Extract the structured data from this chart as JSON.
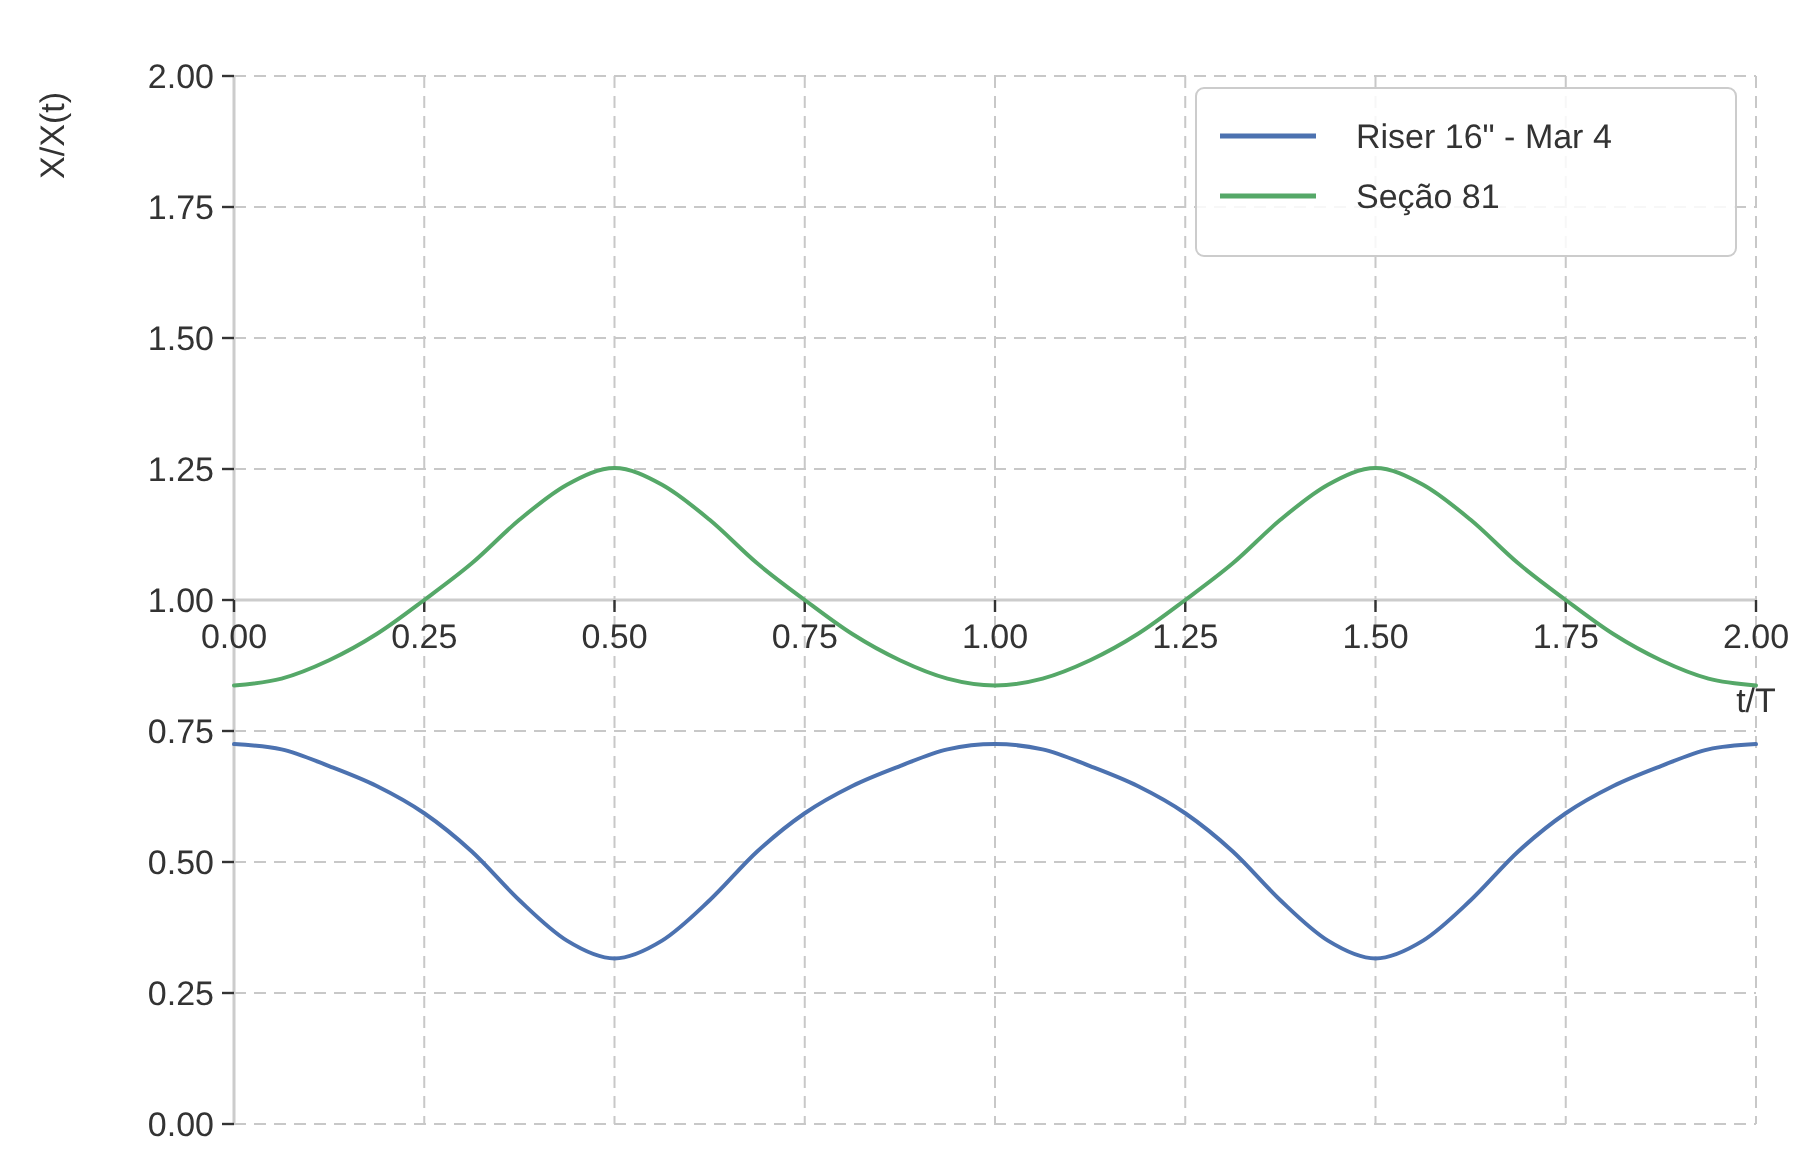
{
  "chart_data": {
    "type": "line",
    "xlabel": "t/T",
    "ylabel": "X/X(t)",
    "x": [
      0,
      0.0625,
      0.125,
      0.1875,
      0.25,
      0.3125,
      0.375,
      0.4375,
      0.5,
      0.5625,
      0.625,
      0.6875,
      0.75,
      0.8125,
      0.875,
      0.9375,
      1,
      1.0625,
      1.125,
      1.1875,
      1.25,
      1.3125,
      1.375,
      1.4375,
      1.5,
      1.5625,
      1.625,
      1.6875,
      1.75,
      1.8125,
      1.875,
      1.9375,
      2
    ],
    "series": [
      {
        "name": "Riser 16\" - Mar 4",
        "color": "#4c72b0",
        "values": [
          0.725,
          0.715,
          0.683,
          0.645,
          0.593,
          0.52,
          0.427,
          0.35,
          0.316,
          0.35,
          0.427,
          0.52,
          0.593,
          0.645,
          0.683,
          0.715,
          0.725,
          0.715,
          0.683,
          0.645,
          0.593,
          0.52,
          0.427,
          0.35,
          0.316,
          0.35,
          0.427,
          0.52,
          0.593,
          0.645,
          0.683,
          0.715,
          0.725
        ]
      },
      {
        "name": "Seção 81",
        "color": "#55a868",
        "values": [
          0.837,
          0.85,
          0.885,
          0.935,
          1.0,
          1.07,
          1.153,
          1.22,
          1.252,
          1.22,
          1.153,
          1.07,
          1.0,
          0.935,
          0.885,
          0.85,
          0.837,
          0.85,
          0.885,
          0.935,
          1.0,
          1.07,
          1.153,
          1.22,
          1.252,
          1.22,
          1.153,
          1.07,
          1.0,
          0.935,
          0.885,
          0.85,
          0.837
        ]
      }
    ],
    "xlim": [
      0,
      2
    ],
    "xticks": [
      {
        "value": 0,
        "label": "0.00"
      },
      {
        "value": 0.25,
        "label": "0.25"
      },
      {
        "value": 0.5,
        "label": "0.50"
      },
      {
        "value": 0.75,
        "label": "0.75"
      },
      {
        "value": 1,
        "label": "1.00"
      },
      {
        "value": 1.25,
        "label": "1.25"
      },
      {
        "value": 1.5,
        "label": "1.50"
      },
      {
        "value": 1.75,
        "label": "1.75"
      },
      {
        "value": 2,
        "label": "2.00"
      }
    ],
    "ylim": [
      0,
      2
    ],
    "yticks": [
      {
        "value": 0,
        "label": "0.00"
      },
      {
        "value": 0.25,
        "label": "0.25"
      },
      {
        "value": 0.5,
        "label": "0.50"
      },
      {
        "value": 0.75,
        "label": "0.75"
      },
      {
        "value": 1,
        "label": "1.00"
      },
      {
        "value": 1.25,
        "label": "1.25"
      },
      {
        "value": 1.5,
        "label": "1.50"
      },
      {
        "value": 1.75,
        "label": "1.75"
      },
      {
        "value": 2,
        "label": "2.00"
      }
    ],
    "grid": true,
    "legend": "top right"
  }
}
